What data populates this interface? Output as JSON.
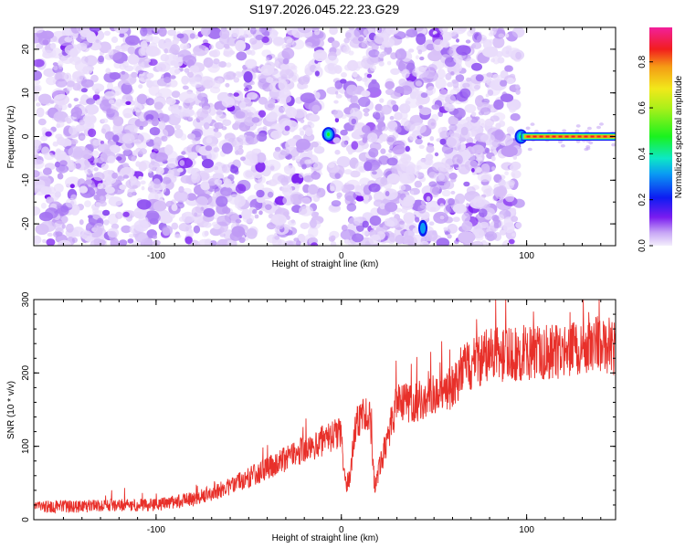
{
  "title": "S197.2026.045.22.23.G29",
  "colors": {
    "purple": "#7a1cf0",
    "signal_line": "#e8302a",
    "axis": "#000000"
  },
  "chart_data": [
    {
      "type": "heatmap",
      "name": "spectrogram",
      "xlabel": "Height of straight line (km)",
      "ylabel": "Frequency (Hz)",
      "xlim": [
        -166,
        148
      ],
      "ylim": [
        -25,
        25
      ],
      "x_ticks": [
        -100,
        0,
        100
      ],
      "y_ticks": [
        -20,
        -10,
        0,
        10,
        20
      ],
      "data_extent_x": [
        -166,
        96
      ],
      "gaps_x": [
        [
          -11,
          -6
        ],
        [
          -1,
          1
        ]
      ],
      "carrier_line": {
        "x_start": 97,
        "x_end": 148,
        "y": 0,
        "value": 0.95
      },
      "hotspots": [
        {
          "x": -7,
          "y": 0.5,
          "value": 0.25
        },
        {
          "x": 44,
          "y": -21,
          "value": 0.12
        },
        {
          "x": 97,
          "y": 0,
          "value": 0.3
        }
      ],
      "colorbar": {
        "label": "Normalized spectral amplitude",
        "min": 0.0,
        "max": 0.95,
        "ticks": [
          "0.0",
          "0.2",
          "0.4",
          "0.6",
          "0.8"
        ],
        "tick_values": [
          0.0,
          0.2,
          0.4,
          0.6,
          0.8
        ]
      }
    },
    {
      "type": "line",
      "name": "snr",
      "xlabel": "Height of straight line (km)",
      "ylabel": "SNR (10 * v/v)",
      "xlim": [
        -166,
        148
      ],
      "ylim": [
        0,
        300
      ],
      "x_ticks": [
        -100,
        0,
        100
      ],
      "y_ticks": [
        0,
        100,
        200,
        300
      ],
      "x": [
        -166,
        -140,
        -120,
        -100,
        -80,
        -60,
        -40,
        -20,
        0,
        2,
        5,
        8,
        15,
        18,
        30,
        40,
        50,
        60,
        65,
        70,
        80,
        90,
        100,
        120,
        135,
        148
      ],
      "values": [
        18,
        18,
        20,
        20,
        28,
        45,
        70,
        95,
        120,
        45,
        60,
        135,
        150,
        45,
        160,
        160,
        170,
        180,
        205,
        210,
        225,
        225,
        225,
        230,
        240,
        235
      ]
    }
  ]
}
